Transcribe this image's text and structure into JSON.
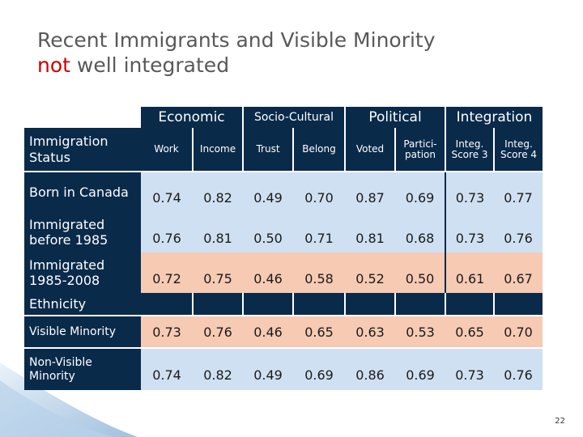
{
  "slide": {
    "title_line1": "Recent Immigrants and Visible Minority",
    "title_accent": "not",
    "title_rest": " well integrated",
    "page_number": "22"
  },
  "table": {
    "groups": [
      "Economic",
      "Socio-Cultural",
      "Political",
      "Integration"
    ],
    "status_header": "Immigration Status",
    "columns": [
      "Work",
      "Income",
      "Trust",
      "Belong",
      "Voted",
      "Partici-pation",
      "Integ. Score 3",
      "Integ. Score 4"
    ],
    "immigration_rows": [
      {
        "label": "Born in Canada",
        "values": [
          "0.74",
          "0.82",
          "0.49",
          "0.70",
          "0.87",
          "0.69",
          "0.73",
          "0.77"
        ]
      },
      {
        "label": "Immigrated before 1985",
        "values": [
          "0.76",
          "0.81",
          "0.50",
          "0.71",
          "0.81",
          "0.68",
          "0.73",
          "0.76"
        ]
      },
      {
        "label": "Immigrated 1985-2008",
        "values": [
          "0.72",
          "0.75",
          "0.46",
          "0.58",
          "0.52",
          "0.50",
          "0.61",
          "0.67"
        ]
      }
    ],
    "ethnicity_label": "Ethnicity",
    "ethnicity_rows": [
      {
        "label": "Visible Minority",
        "values": [
          "0.73",
          "0.76",
          "0.46",
          "0.65",
          "0.63",
          "0.53",
          "0.65",
          "0.70"
        ]
      },
      {
        "label": "Non-Visible Minority",
        "values": [
          "0.74",
          "0.82",
          "0.49",
          "0.69",
          "0.86",
          "0.69",
          "0.73",
          "0.76"
        ]
      }
    ]
  },
  "colors": {
    "header_bg": "#0a2a4a",
    "row_blue": "#cfe0f2",
    "row_peach": "#f6cab3",
    "accent_red": "#cc0000"
  }
}
